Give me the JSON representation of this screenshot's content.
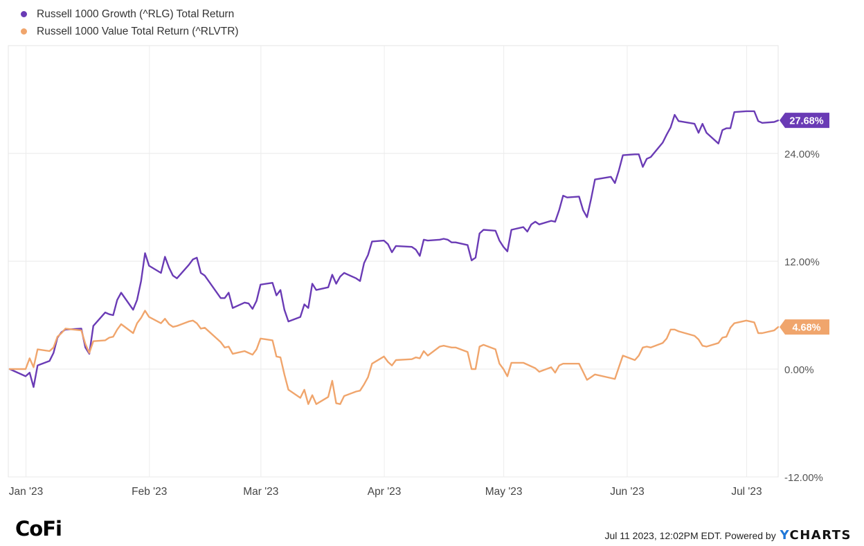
{
  "chart_data": {
    "type": "line",
    "title": "",
    "xlabel": "",
    "ylabel": "",
    "x_ticks": [
      "Jan '23",
      "Feb '23",
      "Mar '23",
      "Apr '23",
      "May '23",
      "Jun '23",
      "Jul '23"
    ],
    "y_ticks": [
      "24.00%",
      "12.00%",
      "0.00%",
      "-12.00%"
    ],
    "y_tick_values": [
      24,
      12,
      0,
      -12
    ],
    "ylim": [
      -12,
      36
    ],
    "xlim": [
      "2022-12-30",
      "2023-07-11"
    ],
    "grid": true,
    "legend_position": "top-left",
    "series": [
      {
        "name": "Russell 1000 Growth (^RLG) Total Return",
        "color": "#6a3bb5",
        "end_label": "27.68%",
        "points": [
          [
            "2022-12-30",
            0.0
          ],
          [
            "2023-01-03",
            -0.8
          ],
          [
            "2023-01-04",
            -0.4
          ],
          [
            "2023-01-05",
            -2.0
          ],
          [
            "2023-01-06",
            0.4
          ],
          [
            "2023-01-09",
            0.9
          ],
          [
            "2023-01-10",
            1.8
          ],
          [
            "2023-01-11",
            3.5
          ],
          [
            "2023-01-12",
            4.1
          ],
          [
            "2023-01-13",
            4.4
          ],
          [
            "2023-01-17",
            4.5
          ],
          [
            "2023-01-18",
            2.4
          ],
          [
            "2023-01-19",
            1.7
          ],
          [
            "2023-01-20",
            4.8
          ],
          [
            "2023-01-23",
            6.3
          ],
          [
            "2023-01-24",
            6.1
          ],
          [
            "2023-01-25",
            6.0
          ],
          [
            "2023-01-26",
            7.7
          ],
          [
            "2023-01-27",
            8.5
          ],
          [
            "2023-01-30",
            6.6
          ],
          [
            "2023-01-31",
            7.7
          ],
          [
            "2023-02-01",
            9.8
          ],
          [
            "2023-02-02",
            12.9
          ],
          [
            "2023-02-03",
            11.5
          ],
          [
            "2023-02-06",
            10.7
          ],
          [
            "2023-02-07",
            12.5
          ],
          [
            "2023-02-08",
            11.3
          ],
          [
            "2023-02-09",
            10.4
          ],
          [
            "2023-02-10",
            10.1
          ],
          [
            "2023-02-13",
            11.6
          ],
          [
            "2023-02-14",
            12.2
          ],
          [
            "2023-02-15",
            12.4
          ],
          [
            "2023-02-16",
            10.7
          ],
          [
            "2023-02-17",
            10.4
          ],
          [
            "2023-02-21",
            7.9
          ],
          [
            "2023-02-22",
            7.9
          ],
          [
            "2023-02-23",
            8.5
          ],
          [
            "2023-02-24",
            6.8
          ],
          [
            "2023-02-27",
            7.4
          ],
          [
            "2023-02-28",
            7.3
          ],
          [
            "2023-03-01",
            6.7
          ],
          [
            "2023-03-02",
            7.6
          ],
          [
            "2023-03-03",
            9.4
          ],
          [
            "2023-03-06",
            9.6
          ],
          [
            "2023-03-07",
            8.2
          ],
          [
            "2023-03-08",
            8.8
          ],
          [
            "2023-03-09",
            6.6
          ],
          [
            "2023-03-10",
            5.3
          ],
          [
            "2023-03-13",
            5.8
          ],
          [
            "2023-03-14",
            7.2
          ],
          [
            "2023-03-15",
            6.8
          ],
          [
            "2023-03-16",
            9.5
          ],
          [
            "2023-03-17",
            8.8
          ],
          [
            "2023-03-20",
            9.1
          ],
          [
            "2023-03-21",
            10.5
          ],
          [
            "2023-03-22",
            9.5
          ],
          [
            "2023-03-23",
            10.3
          ],
          [
            "2023-03-24",
            10.7
          ],
          [
            "2023-03-27",
            10.1
          ],
          [
            "2023-03-28",
            9.8
          ],
          [
            "2023-03-29",
            11.8
          ],
          [
            "2023-03-30",
            12.7
          ],
          [
            "2023-03-31",
            14.2
          ],
          [
            "2023-04-03",
            14.3
          ],
          [
            "2023-04-04",
            13.9
          ],
          [
            "2023-04-05",
            13.0
          ],
          [
            "2023-04-06",
            13.7
          ],
          [
            "2023-04-10",
            13.6
          ],
          [
            "2023-04-11",
            13.3
          ],
          [
            "2023-04-12",
            12.6
          ],
          [
            "2023-04-13",
            14.4
          ],
          [
            "2023-04-14",
            14.3
          ],
          [
            "2023-04-17",
            14.4
          ],
          [
            "2023-04-18",
            14.5
          ],
          [
            "2023-04-19",
            14.4
          ],
          [
            "2023-04-20",
            14.1
          ],
          [
            "2023-04-21",
            14.1
          ],
          [
            "2023-04-24",
            13.8
          ],
          [
            "2023-04-25",
            12.1
          ],
          [
            "2023-04-26",
            12.4
          ],
          [
            "2023-04-27",
            15.1
          ],
          [
            "2023-04-28",
            15.5
          ],
          [
            "2023-05-01",
            15.4
          ],
          [
            "2023-05-02",
            14.3
          ],
          [
            "2023-05-03",
            13.6
          ],
          [
            "2023-05-04",
            13.1
          ],
          [
            "2023-05-05",
            15.5
          ],
          [
            "2023-05-08",
            15.8
          ],
          [
            "2023-05-09",
            15.3
          ],
          [
            "2023-05-10",
            16.1
          ],
          [
            "2023-05-11",
            16.4
          ],
          [
            "2023-05-12",
            16.1
          ],
          [
            "2023-05-15",
            16.5
          ],
          [
            "2023-05-16",
            16.4
          ],
          [
            "2023-05-17",
            17.7
          ],
          [
            "2023-05-18",
            19.3
          ],
          [
            "2023-05-19",
            19.1
          ],
          [
            "2023-05-22",
            19.2
          ],
          [
            "2023-05-23",
            17.7
          ],
          [
            "2023-05-24",
            16.9
          ],
          [
            "2023-05-25",
            18.9
          ],
          [
            "2023-05-26",
            21.1
          ],
          [
            "2023-05-30",
            21.4
          ],
          [
            "2023-05-31",
            20.7
          ],
          [
            "2023-06-01",
            22.1
          ],
          [
            "2023-06-02",
            23.8
          ],
          [
            "2023-06-05",
            23.9
          ],
          [
            "2023-06-06",
            23.9
          ],
          [
            "2023-06-07",
            22.5
          ],
          [
            "2023-06-08",
            23.4
          ],
          [
            "2023-06-09",
            23.6
          ],
          [
            "2023-06-12",
            25.2
          ],
          [
            "2023-06-13",
            26.1
          ],
          [
            "2023-06-14",
            26.9
          ],
          [
            "2023-06-15",
            28.3
          ],
          [
            "2023-06-16",
            27.6
          ],
          [
            "2023-06-20",
            27.3
          ],
          [
            "2023-06-21",
            26.3
          ],
          [
            "2023-06-22",
            27.3
          ],
          [
            "2023-06-23",
            26.3
          ],
          [
            "2023-06-26",
            25.1
          ],
          [
            "2023-06-27",
            26.6
          ],
          [
            "2023-06-28",
            26.8
          ],
          [
            "2023-06-29",
            26.8
          ],
          [
            "2023-06-30",
            28.6
          ],
          [
            "2023-07-03",
            28.7
          ],
          [
            "2023-07-05",
            28.7
          ],
          [
            "2023-07-06",
            27.6
          ],
          [
            "2023-07-07",
            27.4
          ],
          [
            "2023-07-10",
            27.5
          ],
          [
            "2023-07-11",
            27.68
          ]
        ]
      },
      {
        "name": "Russell 1000 Value Total Return (^RLVTR)",
        "color": "#f0a56c",
        "end_label": "4.68%",
        "points": [
          [
            "2022-12-30",
            0.0
          ],
          [
            "2023-01-03",
            0.0
          ],
          [
            "2023-01-04",
            1.2
          ],
          [
            "2023-01-05",
            0.2
          ],
          [
            "2023-01-06",
            2.2
          ],
          [
            "2023-01-09",
            2.0
          ],
          [
            "2023-01-10",
            2.4
          ],
          [
            "2023-01-11",
            3.6
          ],
          [
            "2023-01-12",
            4.0
          ],
          [
            "2023-01-13",
            4.5
          ],
          [
            "2023-01-17",
            4.3
          ],
          [
            "2023-01-18",
            2.8
          ],
          [
            "2023-01-19",
            1.8
          ],
          [
            "2023-01-20",
            3.1
          ],
          [
            "2023-01-23",
            3.2
          ],
          [
            "2023-01-24",
            3.5
          ],
          [
            "2023-01-25",
            3.6
          ],
          [
            "2023-01-26",
            4.4
          ],
          [
            "2023-01-27",
            5.0
          ],
          [
            "2023-01-30",
            4.0
          ],
          [
            "2023-01-31",
            5.1
          ],
          [
            "2023-02-01",
            5.7
          ],
          [
            "2023-02-02",
            6.5
          ],
          [
            "2023-02-03",
            5.8
          ],
          [
            "2023-02-06",
            5.1
          ],
          [
            "2023-02-07",
            5.6
          ],
          [
            "2023-02-08",
            5.0
          ],
          [
            "2023-02-09",
            4.7
          ],
          [
            "2023-02-10",
            4.8
          ],
          [
            "2023-02-13",
            5.3
          ],
          [
            "2023-02-14",
            5.4
          ],
          [
            "2023-02-15",
            5.1
          ],
          [
            "2023-02-16",
            4.5
          ],
          [
            "2023-02-17",
            4.6
          ],
          [
            "2023-02-21",
            3.0
          ],
          [
            "2023-02-22",
            2.4
          ],
          [
            "2023-02-23",
            2.5
          ],
          [
            "2023-02-24",
            1.7
          ],
          [
            "2023-02-27",
            2.0
          ],
          [
            "2023-02-28",
            1.8
          ],
          [
            "2023-03-01",
            1.6
          ],
          [
            "2023-03-02",
            2.2
          ],
          [
            "2023-03-03",
            3.4
          ],
          [
            "2023-03-06",
            3.2
          ],
          [
            "2023-03-07",
            1.4
          ],
          [
            "2023-03-08",
            1.3
          ],
          [
            "2023-03-09",
            -0.6
          ],
          [
            "2023-03-10",
            -2.3
          ],
          [
            "2023-03-13",
            -3.2
          ],
          [
            "2023-03-14",
            -2.3
          ],
          [
            "2023-03-15",
            -3.9
          ],
          [
            "2023-03-16",
            -2.9
          ],
          [
            "2023-03-17",
            -3.9
          ],
          [
            "2023-03-20",
            -3.1
          ],
          [
            "2023-03-21",
            -1.3
          ],
          [
            "2023-03-22",
            -3.8
          ],
          [
            "2023-03-23",
            -3.9
          ],
          [
            "2023-03-24",
            -3.0
          ],
          [
            "2023-03-27",
            -2.5
          ],
          [
            "2023-03-28",
            -2.4
          ],
          [
            "2023-03-29",
            -1.7
          ],
          [
            "2023-03-30",
            -0.9
          ],
          [
            "2023-03-31",
            0.6
          ],
          [
            "2023-04-03",
            1.4
          ],
          [
            "2023-04-04",
            0.8
          ],
          [
            "2023-04-05",
            0.4
          ],
          [
            "2023-04-06",
            1.0
          ],
          [
            "2023-04-10",
            1.1
          ],
          [
            "2023-04-11",
            1.3
          ],
          [
            "2023-04-12",
            1.2
          ],
          [
            "2023-04-13",
            2.0
          ],
          [
            "2023-04-14",
            1.5
          ],
          [
            "2023-04-17",
            2.5
          ],
          [
            "2023-04-18",
            2.6
          ],
          [
            "2023-04-19",
            2.5
          ],
          [
            "2023-04-20",
            2.4
          ],
          [
            "2023-04-21",
            2.4
          ],
          [
            "2023-04-24",
            1.9
          ],
          [
            "2023-04-25",
            0.0
          ],
          [
            "2023-04-26",
            0.0
          ],
          [
            "2023-04-27",
            2.5
          ],
          [
            "2023-04-28",
            2.7
          ],
          [
            "2023-05-01",
            2.2
          ],
          [
            "2023-05-02",
            0.6
          ],
          [
            "2023-05-03",
            0.0
          ],
          [
            "2023-05-04",
            -0.8
          ],
          [
            "2023-05-05",
            0.7
          ],
          [
            "2023-05-08",
            0.7
          ],
          [
            "2023-05-09",
            0.5
          ],
          [
            "2023-05-10",
            0.3
          ],
          [
            "2023-05-11",
            0.1
          ],
          [
            "2023-05-12",
            -0.3
          ],
          [
            "2023-05-15",
            0.2
          ],
          [
            "2023-05-16",
            -0.4
          ],
          [
            "2023-05-17",
            0.4
          ],
          [
            "2023-05-18",
            0.6
          ],
          [
            "2023-05-19",
            0.6
          ],
          [
            "2023-05-22",
            0.6
          ],
          [
            "2023-05-23",
            -0.3
          ],
          [
            "2023-05-24",
            -1.2
          ],
          [
            "2023-05-25",
            -0.9
          ],
          [
            "2023-05-26",
            -0.6
          ],
          [
            "2023-05-30",
            -1.0
          ],
          [
            "2023-05-31",
            -1.1
          ],
          [
            "2023-06-01",
            0.2
          ],
          [
            "2023-06-02",
            1.5
          ],
          [
            "2023-06-05",
            1.0
          ],
          [
            "2023-06-06",
            1.5
          ],
          [
            "2023-06-07",
            2.4
          ],
          [
            "2023-06-08",
            2.5
          ],
          [
            "2023-06-09",
            2.4
          ],
          [
            "2023-06-12",
            2.9
          ],
          [
            "2023-06-13",
            3.4
          ],
          [
            "2023-06-14",
            4.4
          ],
          [
            "2023-06-15",
            4.4
          ],
          [
            "2023-06-16",
            4.2
          ],
          [
            "2023-06-20",
            3.7
          ],
          [
            "2023-06-21",
            3.3
          ],
          [
            "2023-06-22",
            2.6
          ],
          [
            "2023-06-23",
            2.5
          ],
          [
            "2023-06-26",
            2.9
          ],
          [
            "2023-06-27",
            3.5
          ],
          [
            "2023-06-28",
            3.6
          ],
          [
            "2023-06-29",
            4.6
          ],
          [
            "2023-06-30",
            5.1
          ],
          [
            "2023-07-03",
            5.4
          ],
          [
            "2023-07-05",
            5.2
          ],
          [
            "2023-07-06",
            4.0
          ],
          [
            "2023-07-07",
            4.0
          ],
          [
            "2023-07-10",
            4.3
          ],
          [
            "2023-07-11",
            4.68
          ]
        ]
      }
    ]
  },
  "footer": {
    "logo_left": "CoFi",
    "timestamp": "Jul 11 2023, 12:02PM EDT.",
    "powered_by": "Powered by",
    "brand_y": "Y",
    "brand_rest": "CHARTS"
  }
}
